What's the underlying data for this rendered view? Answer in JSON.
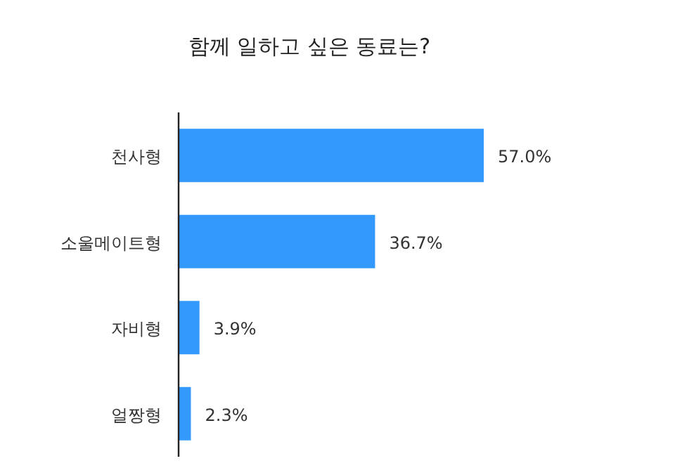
{
  "chart_data": {
    "type": "bar",
    "orientation": "horizontal",
    "title": "함께 일하고 싶은 동료는?",
    "categories": [
      "천사형",
      "소울메이트형",
      "자비형",
      "얼짱형"
    ],
    "values": [
      57.0,
      36.7,
      3.9,
      2.3
    ],
    "value_labels": [
      "57.0%",
      "36.7%",
      "3.9%",
      "2.3%"
    ],
    "color": "#3399ff"
  }
}
